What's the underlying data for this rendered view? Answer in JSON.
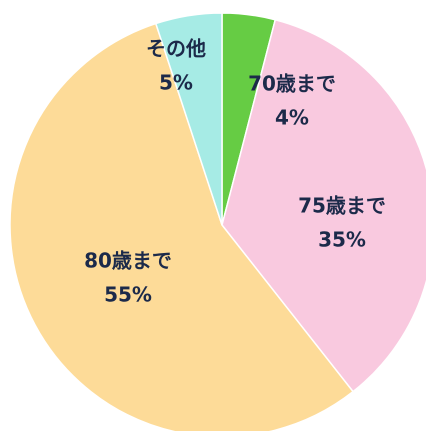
{
  "chart_data": {
    "type": "pie",
    "categories": [
      "70歳まで",
      "75歳まで",
      "80歳まで",
      "その他"
    ],
    "values": [
      4,
      35,
      55,
      5
    ],
    "value_labels": [
      "4%",
      "35%",
      "55%",
      "5%"
    ],
    "colors": [
      "#66cc44",
      "#f9c9df",
      "#fddb98",
      "#a6ebe5"
    ]
  }
}
